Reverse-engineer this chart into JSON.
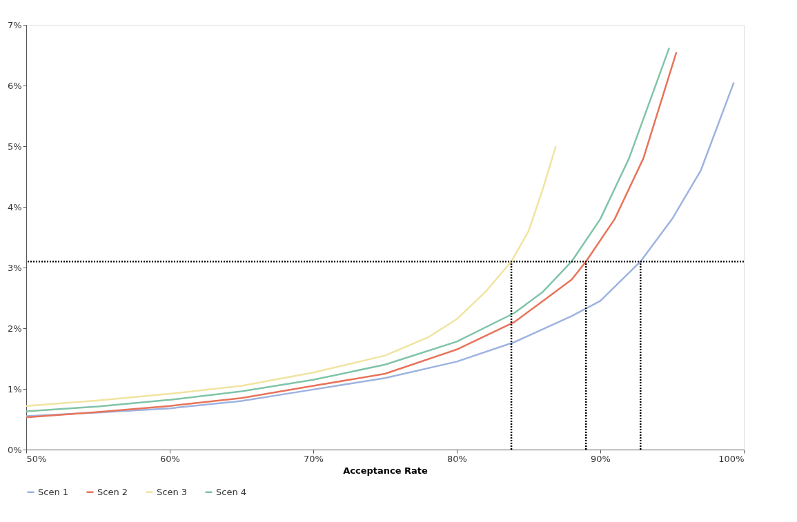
{
  "chart_data": {
    "type": "line",
    "xlabel": "Acceptance Rate",
    "xlim": [
      50,
      100
    ],
    "ylim": [
      0,
      7
    ],
    "xticks": [
      {
        "value": 50,
        "label": "50%"
      },
      {
        "value": 60,
        "label": "60%"
      },
      {
        "value": 70,
        "label": "70%"
      },
      {
        "value": 80,
        "label": "80%"
      },
      {
        "value": 90,
        "label": "90%"
      },
      {
        "value": 100,
        "label": "100%"
      }
    ],
    "yticks": [
      {
        "value": 0,
        "label": "0%"
      },
      {
        "value": 1,
        "label": "1%"
      },
      {
        "value": 2,
        "label": "2%"
      },
      {
        "value": 3,
        "label": "3%"
      },
      {
        "value": 4,
        "label": "4%"
      },
      {
        "value": 5,
        "label": "5%"
      },
      {
        "value": 6,
        "label": "6%"
      },
      {
        "value": 7,
        "label": "7%"
      }
    ],
    "grid": false,
    "legend": "bottom",
    "line_style": "solid",
    "series": [
      {
        "name": "Scen 1",
        "color": "#9db3e0",
        "x": [
          50,
          55,
          60,
          65,
          70,
          75,
          80,
          84,
          88,
          90,
          92.8,
          95,
          97,
          99.3
        ],
        "values": [
          0.55,
          0.61,
          0.68,
          0.8,
          0.99,
          1.18,
          1.45,
          1.77,
          2.2,
          2.45,
          3.1,
          3.8,
          4.6,
          6.05
        ]
      },
      {
        "name": "Scen 2",
        "color": "#e8735a",
        "x": [
          50,
          55,
          60,
          65,
          70,
          75,
          80,
          84,
          86,
          88,
          89,
          91,
          93,
          95.3
        ],
        "values": [
          0.53,
          0.62,
          0.72,
          0.85,
          1.05,
          1.25,
          1.65,
          2.1,
          2.45,
          2.8,
          3.1,
          3.8,
          4.8,
          6.55
        ]
      },
      {
        "name": "Scen 3",
        "color": "#f0e4a0",
        "x": [
          50,
          55,
          60,
          65,
          70,
          75,
          78,
          80,
          82,
          83.8,
          85,
          86,
          86.9
        ],
        "values": [
          0.72,
          0.81,
          0.92,
          1.05,
          1.27,
          1.55,
          1.85,
          2.15,
          2.6,
          3.1,
          3.6,
          4.3,
          5.0
        ]
      },
      {
        "name": "Scen 4",
        "color": "#7fc4a8",
        "x": [
          50,
          55,
          60,
          65,
          70,
          75,
          80,
          84,
          86,
          88,
          90,
          92,
          94.8
        ],
        "values": [
          0.63,
          0.71,
          0.82,
          0.96,
          1.15,
          1.4,
          1.78,
          2.25,
          2.6,
          3.1,
          3.8,
          4.8,
          6.62
        ]
      },
      {
        "color": "#000000",
        "line_style": "dotted",
        "x": [
          83.8,
          83.8
        ],
        "values": [
          0,
          3.1
        ]
      },
      {
        "color": "#000000",
        "line_style": "dotted",
        "x": [
          89,
          89
        ],
        "values": [
          0,
          3.1
        ]
      },
      {
        "color": "#000000",
        "line_style": "dotted",
        "x": [
          92.8,
          92.8
        ],
        "values": [
          0,
          3.1
        ]
      }
    ],
    "ref_lines": [
      {
        "axis": "y",
        "value": 3.1,
        "color": "#000000",
        "line_style": "dotted"
      }
    ]
  }
}
